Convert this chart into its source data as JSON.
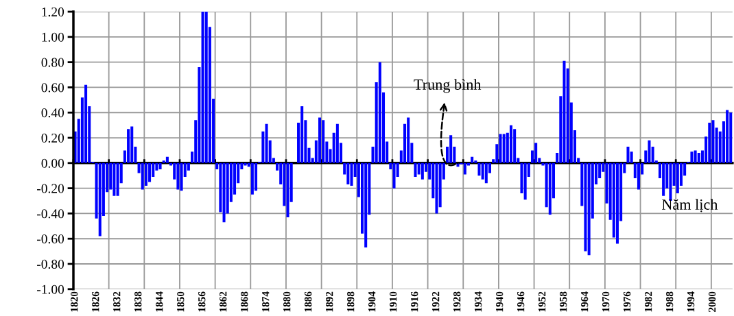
{
  "chart_data": {
    "type": "bar",
    "xlabel": "Năm lịch",
    "color": "#0000ff",
    "grid": true,
    "categories": [
      "1820",
      null,
      null,
      null,
      null,
      null,
      "1826",
      null,
      null,
      null,
      null,
      null,
      "1832",
      null,
      null,
      null,
      null,
      null,
      "1838",
      null,
      null,
      null,
      null,
      null,
      "1844",
      null,
      null,
      null,
      null,
      null,
      "1850",
      null,
      null,
      null,
      null,
      null,
      "1856",
      null,
      null,
      null,
      null,
      null,
      "1862",
      null,
      null,
      null,
      null,
      null,
      "1868",
      null,
      null,
      null,
      null,
      null,
      "1874",
      null,
      null,
      null,
      null,
      null,
      "1880",
      null,
      null,
      null,
      null,
      null,
      "1886",
      null,
      null,
      null,
      null,
      null,
      "1892",
      null,
      null,
      null,
      null,
      null,
      "1898",
      null,
      null,
      null,
      null,
      null,
      "1904",
      null,
      null,
      null,
      null,
      null,
      "1910",
      null,
      null,
      null,
      null,
      null,
      "1916",
      null,
      null,
      null,
      null,
      null,
      "1922",
      null,
      null,
      null,
      null,
      null,
      "1928",
      null,
      null,
      null,
      null,
      null,
      "1934",
      null,
      null,
      null,
      null,
      null,
      "1940",
      null,
      null,
      null,
      null,
      null,
      "1946",
      null,
      null,
      null,
      null,
      null,
      "1952",
      null,
      null,
      null,
      null,
      null,
      "1958",
      null,
      null,
      null,
      null,
      null,
      "1964",
      null,
      null,
      null,
      null,
      null,
      "1970",
      null,
      null,
      null,
      null,
      null,
      "1976",
      null,
      null,
      null,
      null,
      null,
      "1982",
      null,
      null,
      null,
      null,
      null,
      "1988",
      null,
      null,
      null,
      null,
      null,
      "1994",
      null,
      null,
      null,
      null,
      null,
      "2000",
      null,
      null,
      null,
      null,
      null
    ],
    "values": [
      0.25,
      0.35,
      0.52,
      0.62,
      0.45,
      0.01,
      -0.44,
      -0.58,
      -0.42,
      -0.23,
      -0.21,
      -0.26,
      -0.26,
      -0.16,
      0.1,
      0.27,
      0.29,
      0.13,
      -0.08,
      -0.21,
      -0.18,
      -0.15,
      -0.11,
      -0.06,
      -0.05,
      0.02,
      0.05,
      -0.02,
      -0.13,
      -0.21,
      -0.22,
      -0.11,
      -0.06,
      0.09,
      0.34,
      0.76,
      1.2,
      1.2,
      1.08,
      0.51,
      -0.05,
      -0.39,
      -0.47,
      -0.4,
      -0.31,
      -0.25,
      -0.16,
      -0.05,
      -0.02,
      -0.03,
      -0.25,
      -0.22,
      0.01,
      0.25,
      0.31,
      0.18,
      0.04,
      -0.06,
      -0.17,
      -0.34,
      -0.43,
      -0.31,
      0,
      0.32,
      0.45,
      0.34,
      0.12,
      0.04,
      0.18,
      0.36,
      0.34,
      0.17,
      0.11,
      0.24,
      0.31,
      0.16,
      -0.09,
      -0.17,
      -0.18,
      -0.11,
      -0.27,
      -0.56,
      -0.67,
      -0.41,
      0.13,
      0.64,
      0.8,
      0.56,
      0.17,
      -0.05,
      -0.2,
      -0.11,
      0.1,
      0.31,
      0.36,
      0.16,
      -0.11,
      -0.09,
      -0.13,
      -0.07,
      -0.13,
      -0.28,
      -0.4,
      -0.35,
      -0.13,
      0.13,
      0.22,
      0.13,
      -0.03,
      -0.01,
      -0.09,
      -0.02,
      0.05,
      0.02,
      -0.1,
      -0.13,
      -0.16,
      -0.08,
      0.03,
      0.15,
      0.23,
      0.23,
      0.24,
      0.3,
      0.27,
      0.04,
      -0.24,
      -0.29,
      -0.11,
      0.1,
      0.16,
      0.04,
      -0.02,
      -0.35,
      -0.41,
      -0.28,
      0.08,
      0.53,
      0.81,
      0.75,
      0.48,
      0.26,
      0.04,
      -0.34,
      -0.7,
      -0.73,
      -0.44,
      -0.17,
      -0.12,
      -0.07,
      -0.32,
      -0.45,
      -0.59,
      -0.64,
      -0.46,
      -0.08,
      0.13,
      0.09,
      -0.12,
      -0.21,
      -0.09,
      0.1,
      0.18,
      0.13,
      0.02,
      -0.12,
      -0.26,
      -0.2,
      -0.3,
      -0.18,
      -0.24,
      -0.18,
      -0.1,
      0.01,
      0.09,
      0.1,
      0.08,
      0.1,
      0.21,
      0.32,
      0.34,
      0.28,
      0.25,
      0.33,
      0.42,
      0.4
    ],
    "ylim": [
      -1.0,
      1.2
    ],
    "yticks": [
      {
        "value": 1.2,
        "label": "1.20"
      },
      {
        "value": 1.0,
        "label": "1.00"
      },
      {
        "value": 0.8,
        "label": "0.80"
      },
      {
        "value": 0.6,
        "label": "0.60"
      },
      {
        "value": 0.4,
        "label": "0.40"
      },
      {
        "value": 0.2,
        "label": "0.20"
      },
      {
        "value": 0.0,
        "label": "0.00"
      },
      {
        "value": -0.2,
        "label": "-0.20"
      },
      {
        "value": -0.4,
        "label": "-0.40"
      },
      {
        "value": -0.6,
        "label": "-0.60"
      },
      {
        "value": -0.8,
        "label": "-0.80"
      },
      {
        "value": -1.0,
        "label": "-1.00"
      }
    ],
    "annotations": [
      {
        "text": "Trung bình",
        "x": "1928",
        "y": 0
      }
    ]
  }
}
